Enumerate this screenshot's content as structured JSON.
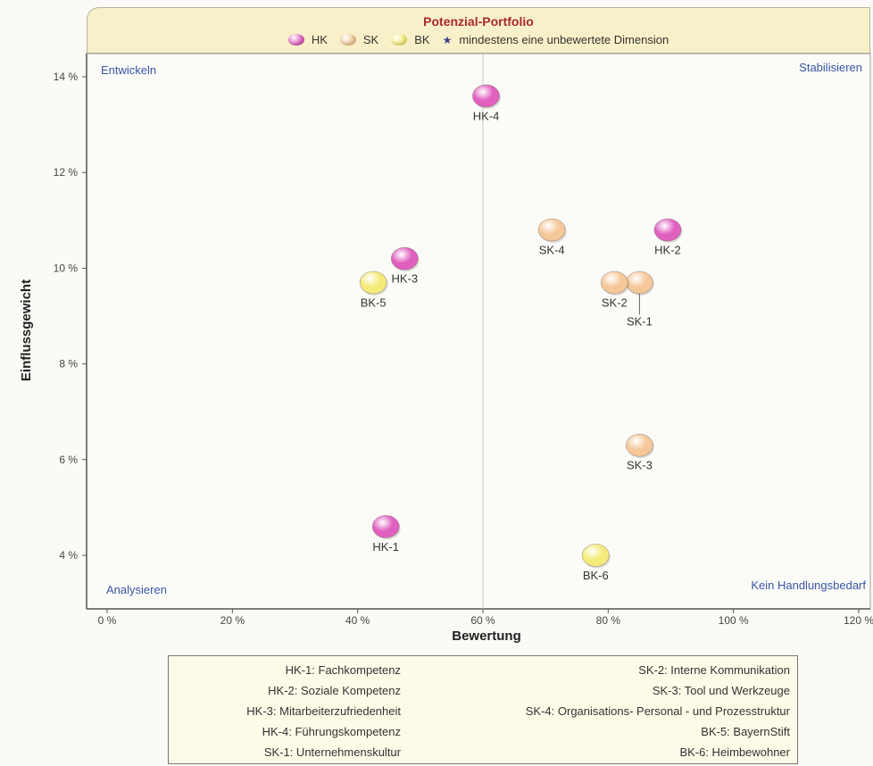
{
  "header": {
    "title": "Potenzial-Portfolio",
    "legend": [
      {
        "label": "HK",
        "color": "#e060c0",
        "marker": "circle"
      },
      {
        "label": "SK",
        "color": "#f5c89a",
        "marker": "circle"
      },
      {
        "label": "BK",
        "color": "#f3ec7a",
        "marker": "circle"
      },
      {
        "label": "mindestens eine unbewertete Dimension",
        "color": "#3b3f8c",
        "marker": "star"
      }
    ]
  },
  "quadrants": {
    "top_left": "Entwickeln",
    "top_right": "Stabilisieren",
    "bottom_left": "Analysieren",
    "bottom_right": "Kein Handlungsbedarf"
  },
  "chart_data": {
    "type": "scatter",
    "title": "Potenzial-Portfolio",
    "xlabel": "Bewertung",
    "ylabel": "Einflussgewicht",
    "xlim": [
      -4,
      124
    ],
    "ylim": [
      3.1,
      14.7
    ],
    "x_ticks": [
      0,
      20,
      40,
      60,
      80,
      100,
      120
    ],
    "x_tick_labels": [
      "0 %",
      "20 %",
      "40 %",
      "60 %",
      "80 %",
      "100 %",
      "120 %"
    ],
    "y_ticks": [
      4,
      6,
      8,
      10,
      12,
      14
    ],
    "y_tick_labels": [
      "4 %",
      "6 %",
      "8 %",
      "10 %",
      "12 %",
      "14 %"
    ],
    "divider_x": 60,
    "grid": false,
    "legend_position": "top",
    "series": [
      {
        "name": "HK",
        "color": "#e060c0",
        "points": [
          {
            "label": "HK-1",
            "x": 44.5,
            "y": 4.6
          },
          {
            "label": "HK-2",
            "x": 89.5,
            "y": 10.8
          },
          {
            "label": "HK-3",
            "x": 47.5,
            "y": 10.2
          },
          {
            "label": "HK-4",
            "x": 60.5,
            "y": 13.6
          }
        ]
      },
      {
        "name": "SK",
        "color": "#f5c89a",
        "points": [
          {
            "label": "SK-1",
            "x": 85,
            "y": 9.7
          },
          {
            "label": "SK-2",
            "x": 81,
            "y": 9.7
          },
          {
            "label": "SK-3",
            "x": 85,
            "y": 6.3
          },
          {
            "label": "SK-4",
            "x": 71,
            "y": 10.8
          }
        ]
      },
      {
        "name": "BK",
        "color": "#f3ec7a",
        "points": [
          {
            "label": "BK-5",
            "x": 42.5,
            "y": 9.7
          },
          {
            "label": "BK-6",
            "x": 78,
            "y": 4.0
          }
        ]
      }
    ]
  },
  "key": {
    "left": [
      "HK-1: Fachkompetenz",
      "HK-2: Soziale Kompetenz",
      "HK-3: Mitarbeiterzufriedenheit",
      "HK-4: Führungskompetenz",
      "SK-1: Unternehmenskultur"
    ],
    "right": [
      "SK-2: Interne Kommunikation",
      "SK-3: Tool und Werkzeuge",
      "SK-4: Organisations- Personal - und Prozesstruktur",
      "BK-5: BayernStift",
      "BK-6: Heimbewohner"
    ]
  }
}
